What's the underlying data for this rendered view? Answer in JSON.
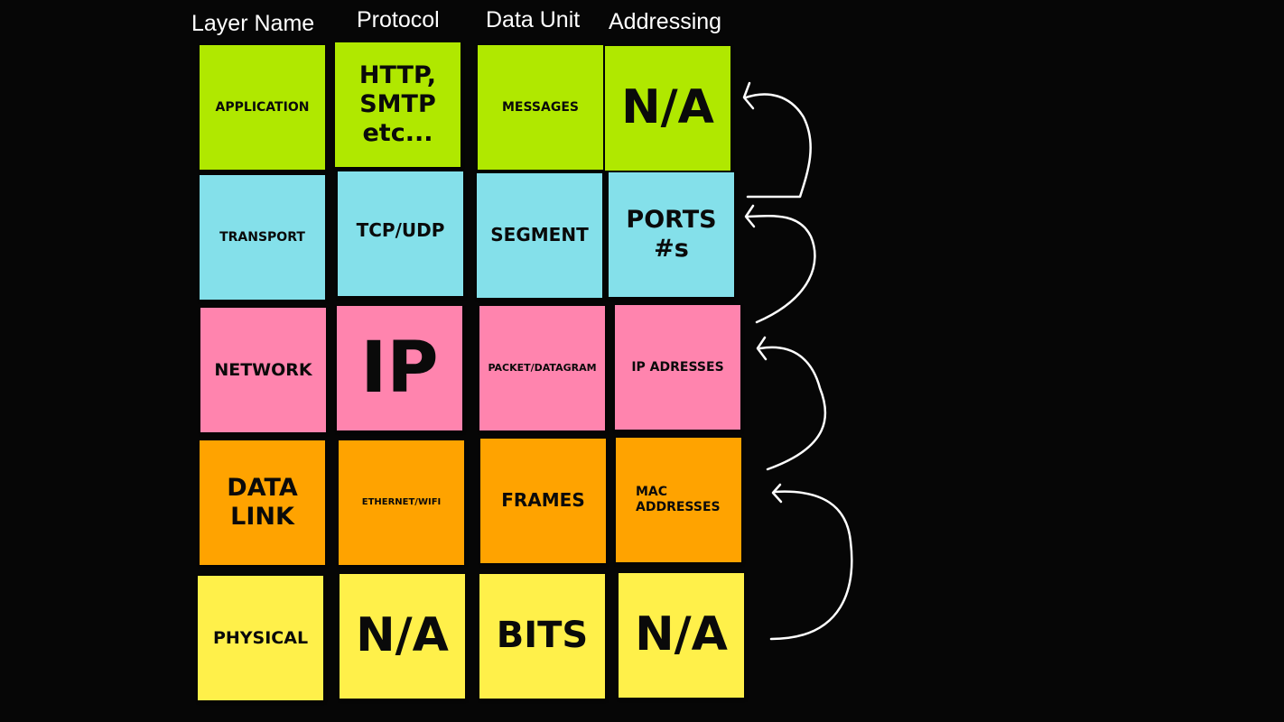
{
  "headers": {
    "layer_name": "Layer Name",
    "protocol": "Protocol",
    "data_unit": "Data Unit",
    "addressing": "Addressing"
  },
  "colors": {
    "background": "#060606",
    "application": "#b0e800",
    "transport": "#84e0ea",
    "network": "#ff84ae",
    "data_link": "#ffa300",
    "physical": "#fff04a",
    "arrows": "#ffffff"
  },
  "rows": [
    {
      "layer": "APPLICATION",
      "protocol": "HTTP,\nSMTP\netc...",
      "data_unit": "MESSAGES",
      "addressing": "N/A"
    },
    {
      "layer": "TRANSPORT",
      "protocol": "TCP/UDP",
      "data_unit": "SEGMENT",
      "addressing": "PORTS\n#s"
    },
    {
      "layer": "NETWORK",
      "protocol": "IP",
      "data_unit": "PACKET/DATAGRAM",
      "addressing": "IP ADRESSES"
    },
    {
      "layer": "DATA\nLINK",
      "protocol": "ETHERNET/WIFI",
      "data_unit": "FRAMES",
      "addressing": "MAC\nADDRESSES"
    },
    {
      "layer": "PHYSICAL",
      "protocol": "N/A",
      "data_unit": "BITS",
      "addressing": "N/A"
    }
  ],
  "arrows": [
    "physical-to-data-link",
    "data-link-to-network",
    "network-to-transport",
    "transport-to-application"
  ]
}
